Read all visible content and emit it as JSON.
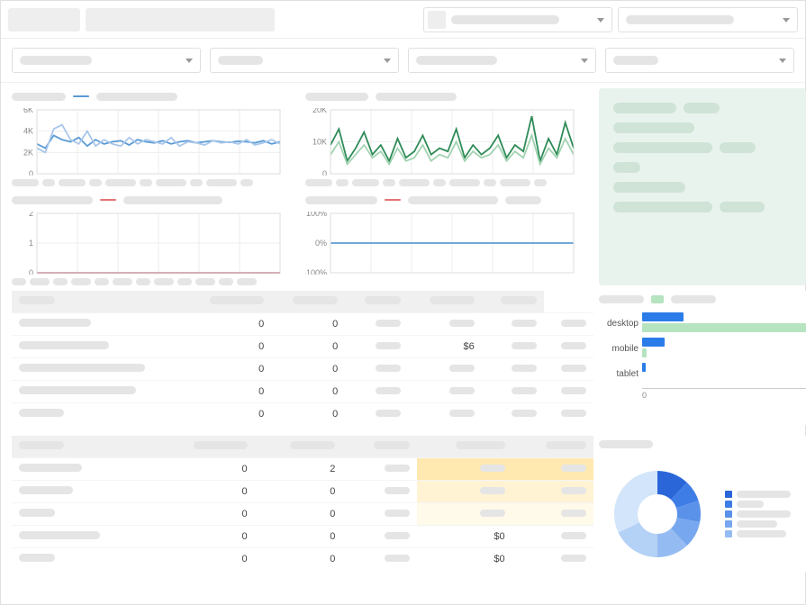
{
  "topbar": {
    "selector1": {
      "placeholder_w": 120
    },
    "selector2": {
      "placeholder_w": 120
    }
  },
  "filters": [
    {
      "placeholder_w": 80
    },
    {
      "placeholder_w": 50
    },
    {
      "placeholder_w": 90
    },
    {
      "placeholder_w": 50
    }
  ],
  "chart1": {
    "type": "line",
    "ylim": [
      0,
      6000
    ],
    "yticks": [
      "6K",
      "4K",
      "2K",
      "0"
    ],
    "line_colors": [
      "#5b9bd5",
      "#a9c7ea"
    ],
    "grid_color": "#eeeeee",
    "series": [
      [
        2800,
        2400,
        3600,
        3200,
        3000,
        3400,
        2600,
        3200,
        2800,
        3000,
        3100,
        2700,
        3200,
        3000,
        2900,
        3100,
        2800,
        3000,
        3100,
        2900,
        3000,
        3100,
        3000,
        2950,
        3050,
        3000,
        2900,
        3100,
        2800,
        3000
      ],
      [
        2400,
        2000,
        4200,
        4600,
        3200,
        2800,
        4000,
        2600,
        3200,
        2800,
        2600,
        3400,
        2800,
        3200,
        3000,
        2800,
        3400,
        2600,
        3000,
        2900,
        2700,
        3100,
        2900,
        3000,
        2800,
        3200,
        2700,
        2900,
        3200,
        2800
      ]
    ],
    "x_pill_widths": [
      30,
      14,
      30,
      14,
      34,
      14,
      34,
      14,
      34,
      14
    ]
  },
  "chart2": {
    "type": "line",
    "ylim": [
      0,
      20000
    ],
    "yticks": [
      "20K",
      "10K",
      "0"
    ],
    "line_colors": [
      "#2e8b57",
      "#a2d3b1"
    ],
    "grid_color": "#eeeeee",
    "series": [
      [
        9000,
        14000,
        4000,
        8000,
        13000,
        6000,
        9000,
        4000,
        11000,
        5000,
        7000,
        12000,
        6000,
        8000,
        7000,
        14000,
        5000,
        9000,
        6000,
        8000,
        12000,
        5000,
        9000,
        7000,
        18000,
        4000,
        11000,
        6000,
        16000,
        8000
      ],
      [
        6000,
        10000,
        3000,
        6000,
        9000,
        5000,
        7000,
        3000,
        8000,
        4000,
        5000,
        9000,
        4000,
        6000,
        5000,
        10000,
        4000,
        7000,
        5000,
        6000,
        9000,
        4000,
        7000,
        5000,
        12000,
        3000,
        8000,
        5000,
        11000,
        6000
      ]
    ],
    "x_pill_widths": [
      30,
      14,
      30,
      14,
      34,
      14,
      34,
      14,
      34,
      14
    ]
  },
  "chart3": {
    "type": "line",
    "ylim": [
      0,
      2
    ],
    "yticks": [
      "2",
      "1",
      "0"
    ],
    "line_colors": [
      "#5b9bd5",
      "#e57373"
    ],
    "grid_color": "#eeeeee",
    "series": [
      [
        0,
        0,
        0,
        0,
        0,
        0,
        0,
        0,
        0,
        0,
        0,
        0,
        0,
        0,
        0,
        0,
        0,
        0,
        0,
        0,
        0,
        0,
        0,
        0,
        0,
        0,
        0,
        0,
        0,
        0
      ],
      [
        0,
        0,
        0,
        0,
        0,
        0,
        0,
        0,
        0,
        0,
        0,
        0,
        0,
        0,
        0,
        0,
        0,
        0,
        0,
        0,
        0,
        0,
        0,
        0,
        0,
        0,
        0,
        0,
        0,
        0
      ]
    ],
    "x_pill_widths": [
      16,
      22,
      16,
      22,
      16,
      22,
      16,
      22,
      16,
      22,
      16,
      22
    ]
  },
  "chart4": {
    "type": "line",
    "ylim": [
      -100,
      100
    ],
    "yticks": [
      "100%",
      "0%",
      "-100%"
    ],
    "line_colors": [
      "#5b9bd5",
      "#e57373"
    ],
    "grid_color": "#eeeeee",
    "series": [
      [
        0,
        0,
        0,
        0,
        0,
        0,
        0,
        0,
        0,
        0,
        0,
        0,
        0,
        0,
        0,
        0,
        0,
        0,
        0,
        0,
        0,
        0,
        0,
        0,
        0,
        0,
        0,
        0,
        0,
        0
      ]
    ]
  },
  "info_panel": {
    "rows": [
      [
        70,
        40
      ],
      [
        90
      ],
      [
        110,
        40
      ],
      [
        30
      ],
      [
        80
      ],
      [
        110,
        50
      ]
    ]
  },
  "table1": {
    "col_count": 6,
    "header_pill_w": [
      40,
      60,
      50,
      40,
      50,
      40
    ],
    "rows": [
      {
        "label_w": 80,
        "cells": [
          "0",
          "0",
          "",
          "",
          "",
          ""
        ]
      },
      {
        "label_w": 100,
        "cells": [
          "0",
          "0",
          "",
          "$6",
          "",
          ""
        ]
      },
      {
        "label_w": 140,
        "cells": [
          "0",
          "0",
          "",
          "",
          "",
          ""
        ]
      },
      {
        "label_w": 130,
        "cells": [
          "0",
          "0",
          "",
          "",
          "",
          ""
        ]
      },
      {
        "label_w": 50,
        "cells": [
          "0",
          "0",
          "",
          "",
          "",
          ""
        ]
      }
    ]
  },
  "hbar": {
    "type": "bar",
    "categories": [
      "desktop",
      "mobile",
      "tablet"
    ],
    "series_colors": [
      "#2b7ce9",
      "#b6e3c0"
    ],
    "values": [
      {
        "blue": 25,
        "green": 100
      },
      {
        "blue": 14,
        "green": 3
      },
      {
        "blue": 2,
        "green": 0
      }
    ],
    "xaxis_label": "0"
  },
  "table2": {
    "col_count": 6,
    "header_pill_w": [
      50,
      60,
      50,
      40,
      55,
      45
    ],
    "rows": [
      {
        "label_w": 70,
        "cells": [
          "0",
          "2",
          "",
          "",
          ""
        ],
        "hl": "hlA"
      },
      {
        "label_w": 60,
        "cells": [
          "0",
          "0",
          "",
          "",
          ""
        ],
        "hl": "hlB"
      },
      {
        "label_w": 40,
        "cells": [
          "0",
          "0",
          "",
          "",
          ""
        ],
        "hl": "hlC"
      },
      {
        "label_w": 90,
        "cells": [
          "0",
          "0",
          "",
          "$0",
          ""
        ],
        "hl": ""
      },
      {
        "label_w": 40,
        "cells": [
          "0",
          "0",
          "",
          "$0",
          ""
        ],
        "hl": ""
      }
    ]
  },
  "donut": {
    "type": "pie",
    "colors": [
      "#2b66d9",
      "#3f7de6",
      "#5a92ea",
      "#77a7ee",
      "#95bcf2",
      "#b4d1f6",
      "#d2e5fa"
    ],
    "values": [
      12,
      8,
      8,
      10,
      12,
      18,
      32
    ],
    "legend_pill_w": [
      60,
      30,
      60,
      45,
      55
    ]
  }
}
